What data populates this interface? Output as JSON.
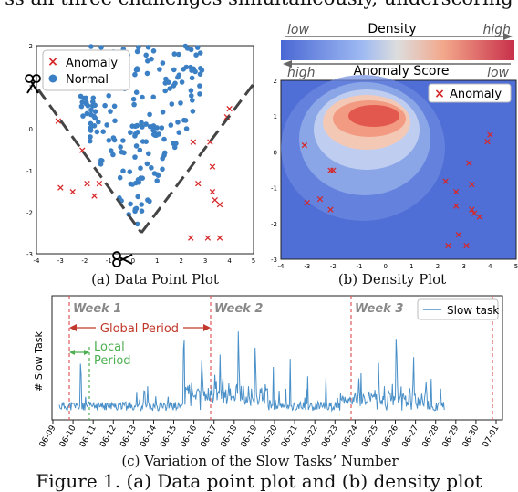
{
  "top_text": "ss all three challenges simultaneously, underscoring",
  "captions": {
    "a": "(a) Data Point Plot",
    "b": "(b) Density Plot",
    "c": "(c) Variation of the Slow Tasks’ Number"
  },
  "figure_caption": "Figure 1. (a) Data point plot and (b) density plot",
  "panel_a": {
    "legend": [
      "Anomaly",
      "Normal"
    ],
    "colors": {
      "anomaly": "#d62728",
      "normal": "#3b7fc4"
    },
    "x_ticks": [
      "-4",
      "-3",
      "-2",
      "-1",
      "0",
      "1",
      "2",
      "3",
      "4",
      "5"
    ],
    "y_ticks": [
      "2",
      "1",
      "0",
      "-1",
      "-2",
      "-3"
    ]
  },
  "panel_b": {
    "density_label": "Density",
    "low": "low",
    "high": "high",
    "anomaly_label": "Anomaly Score",
    "legend": "Anomaly",
    "x_ticks": [
      "-4",
      "-3",
      "-2",
      "-1",
      "0",
      "1",
      "2",
      "3",
      "4",
      "5"
    ],
    "y_ticks": [
      "2",
      "1",
      "0",
      "-1",
      "-2",
      "-3"
    ]
  },
  "chart_data": {
    "type": "line",
    "title": "",
    "ylabel": "# Slow Task",
    "legend": "Slow task",
    "series_color": "#4a90c8",
    "week_labels": [
      "Week 1",
      "Week 2",
      "Week 3"
    ],
    "global_period": "Global Period",
    "local_period": [
      "Local",
      "Period"
    ],
    "x_ticks": [
      "06-09",
      "06-10",
      "06-11",
      "06-12",
      "06-13",
      "06-14",
      "06-15",
      "06-16",
      "06-17",
      "06-18",
      "06-19",
      "06-20",
      "06-21",
      "06-22",
      "06-23",
      "06-24",
      "06-25",
      "06-26",
      "06-27",
      "06-28",
      "06-29",
      "06-30",
      "07-01"
    ]
  }
}
